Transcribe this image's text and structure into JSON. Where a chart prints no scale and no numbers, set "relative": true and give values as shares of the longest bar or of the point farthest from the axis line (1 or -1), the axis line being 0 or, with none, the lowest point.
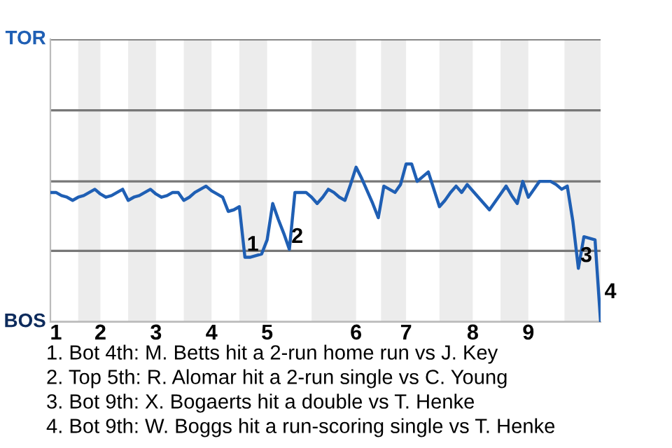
{
  "chart_data": {
    "type": "line",
    "relative": true,
    "categories": [
      null,
      "1",
      null,
      null,
      null,
      null,
      null,
      null,
      null,
      "2",
      null,
      null,
      null,
      null,
      null,
      null,
      null,
      null,
      null,
      "3",
      null,
      null,
      null,
      null,
      null,
      null,
      null,
      null,
      null,
      "4",
      null,
      null,
      null,
      null,
      null,
      null,
      null,
      null,
      null,
      "5",
      null,
      null,
      null,
      null,
      null,
      null,
      null,
      null,
      null,
      null,
      null,
      null,
      null,
      null,
      null,
      "6",
      null,
      null,
      null,
      null,
      null,
      null,
      null,
      null,
      "7",
      null,
      null,
      null,
      null,
      null,
      null,
      null,
      null,
      null,
      null,
      null,
      "8",
      null,
      null,
      null,
      null,
      null,
      null,
      null,
      null,
      null,
      "9",
      null,
      null,
      null,
      null,
      null,
      null,
      null,
      null,
      null,
      null,
      null,
      null,
      null
    ],
    "series": [
      {
        "color": "#1f5fb4",
        "values": [
          0.82,
          0.82,
          0.8,
          0.79,
          0.77,
          0.79,
          0.8,
          0.82,
          0.84,
          0.81,
          0.79,
          0.8,
          0.82,
          0.84,
          0.77,
          0.79,
          0.8,
          0.82,
          0.84,
          0.81,
          0.79,
          0.8,
          0.82,
          0.82,
          0.77,
          0.79,
          0.82,
          0.84,
          0.86,
          0.83,
          0.81,
          0.79,
          0.7,
          0.71,
          0.73,
          0.41,
          0.41,
          0.42,
          0.43,
          0.52,
          0.75,
          0.65,
          0.56,
          0.46,
          0.82,
          0.82,
          0.82,
          0.79,
          0.75,
          0.79,
          0.84,
          0.82,
          0.79,
          0.77,
          0.87,
          0.98,
          0.91,
          0.83,
          0.75,
          0.66,
          0.86,
          0.84,
          0.82,
          0.87,
          1.0,
          1.0,
          0.89,
          0.92,
          0.95,
          0.84,
          0.73,
          0.77,
          0.82,
          0.86,
          0.82,
          0.87,
          0.83,
          0.79,
          0.75,
          0.71,
          0.76,
          0.81,
          0.86,
          0.8,
          0.75,
          0.89,
          0.79,
          0.84,
          0.89,
          0.89,
          0.89,
          0.87,
          0.84,
          0.86,
          0.64,
          0.34,
          0.54,
          0.53,
          0.52,
          0.0
        ]
      }
    ],
    "ref_lines": [
      {
        "axis": "y",
        "value": 0,
        "label": "BOS",
        "color": "#bbbbbb"
      },
      {
        "axis": "y",
        "value": 0.45,
        "color": "#777777"
      },
      {
        "axis": "y",
        "value": 0.89,
        "color": "#777777"
      },
      {
        "axis": "y",
        "value": 1.34,
        "color": "#777777"
      },
      {
        "axis": "y",
        "value": 1.79,
        "label": "TOR",
        "color": "#777777"
      }
    ],
    "annotations": [
      {
        "text": "1",
        "y": 0.41
      },
      {
        "text": "2",
        "y": 0.46
      },
      {
        "text": "3",
        "y": 0.34
      },
      {
        "text": "4"
      },
      "1. Bot 4th: M. Betts hit a 2-run home run vs J. Key",
      "2. Top 5th: R. Alomar hit a 2-run single vs C. Young",
      "3. Bot 9th: X. Bogaerts hit a double vs T. Henke",
      "4. Bot 9th: W. Boggs hit a run-scoring single vs T. Henke"
    ]
  }
}
